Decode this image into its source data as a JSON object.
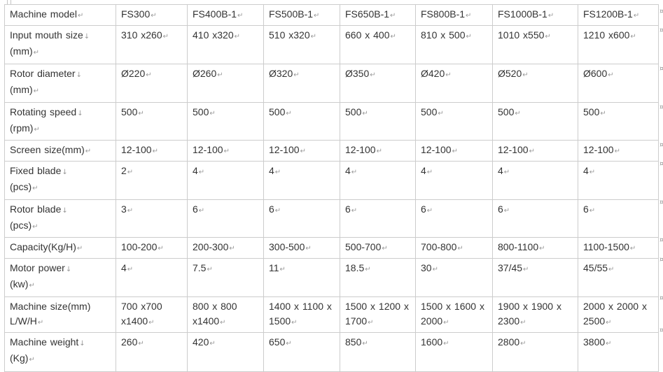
{
  "theme": {
    "page_background": "#ffffff",
    "border_color": "#cccccc",
    "text_color": "#333333",
    "mark_color": "#999999"
  },
  "marks": {
    "line_break": "↓",
    "paragraph": "↵",
    "row_end": "¤"
  },
  "table": {
    "rows": [
      {
        "id": "machine-model",
        "cells": [
          {
            "lines": [
              {
                "text": "Machine model",
                "mark": "↵"
              }
            ]
          },
          {
            "lines": [
              {
                "text": "FS300",
                "mark": "↵"
              }
            ]
          },
          {
            "lines": [
              {
                "text": "FS400B-1",
                "mark": "↵"
              }
            ]
          },
          {
            "lines": [
              {
                "text": "FS500B-1",
                "mark": "↵"
              }
            ]
          },
          {
            "lines": [
              {
                "text": "FS650B-1",
                "mark": "↵"
              }
            ]
          },
          {
            "lines": [
              {
                "text": "FS800B-1",
                "mark": "↵"
              }
            ]
          },
          {
            "lines": [
              {
                "text": "FS1000B-1",
                "mark": "↵"
              }
            ]
          },
          {
            "lines": [
              {
                "text": "FS1200B-1",
                "mark": "↵"
              }
            ]
          }
        ]
      },
      {
        "id": "input-mouth-size",
        "cells": [
          {
            "lines": [
              {
                "text": "Input mouth size",
                "mark": "↓"
              },
              {
                "text": "(mm)",
                "mark": "↵"
              }
            ]
          },
          {
            "lines": [
              {
                "text": "310 x260",
                "mark": "↵"
              }
            ]
          },
          {
            "lines": [
              {
                "text": "410 x320",
                "mark": "↵"
              }
            ]
          },
          {
            "lines": [
              {
                "text": "510 x320",
                "mark": "↵"
              }
            ]
          },
          {
            "lines": [
              {
                "text": "660 x 400",
                "mark": "↵"
              }
            ]
          },
          {
            "lines": [
              {
                "text": "810 x 500",
                "mark": "↵"
              }
            ]
          },
          {
            "lines": [
              {
                "text": "1010 x550",
                "mark": "↵"
              }
            ]
          },
          {
            "lines": [
              {
                "text": "1210 x600",
                "mark": "↵"
              }
            ]
          }
        ]
      },
      {
        "id": "rotor-diameter",
        "cells": [
          {
            "lines": [
              {
                "text": "Rotor diameter",
                "mark": "↓"
              },
              {
                "text": "(mm)",
                "mark": "↵"
              }
            ]
          },
          {
            "lines": [
              {
                "text": "Ø220",
                "mark": "↵"
              }
            ]
          },
          {
            "lines": [
              {
                "text": "Ø260",
                "mark": "↵"
              }
            ]
          },
          {
            "lines": [
              {
                "text": "Ø320",
                "mark": "↵"
              }
            ]
          },
          {
            "lines": [
              {
                "text": "Ø350",
                "mark": "↵"
              }
            ]
          },
          {
            "lines": [
              {
                "text": "Ø420",
                "mark": "↵"
              }
            ]
          },
          {
            "lines": [
              {
                "text": "Ø520",
                "mark": "↵"
              }
            ]
          },
          {
            "lines": [
              {
                "text": "Ø600",
                "mark": "↵"
              }
            ]
          }
        ]
      },
      {
        "id": "rotating-speed",
        "cells": [
          {
            "lines": [
              {
                "text": "Rotating speed",
                "mark": "↓"
              },
              {
                "text": "(rpm)",
                "mark": "↵"
              }
            ]
          },
          {
            "lines": [
              {
                "text": "500",
                "mark": "↵"
              }
            ]
          },
          {
            "lines": [
              {
                "text": "500",
                "mark": "↵"
              }
            ]
          },
          {
            "lines": [
              {
                "text": "500",
                "mark": "↵"
              }
            ]
          },
          {
            "lines": [
              {
                "text": "500",
                "mark": "↵"
              }
            ]
          },
          {
            "lines": [
              {
                "text": "500",
                "mark": "↵"
              }
            ]
          },
          {
            "lines": [
              {
                "text": "500",
                "mark": "↵"
              }
            ]
          },
          {
            "lines": [
              {
                "text": "500",
                "mark": "↵"
              }
            ]
          }
        ]
      },
      {
        "id": "screen-size",
        "cells": [
          {
            "lines": [
              {
                "text": "Screen size(mm)",
                "mark": "↵"
              }
            ]
          },
          {
            "lines": [
              {
                "text": "12-100",
                "mark": "↵"
              }
            ]
          },
          {
            "lines": [
              {
                "text": "12-100",
                "mark": "↵"
              }
            ]
          },
          {
            "lines": [
              {
                "text": "12-100",
                "mark": "↵"
              }
            ]
          },
          {
            "lines": [
              {
                "text": "12-100",
                "mark": "↵"
              }
            ]
          },
          {
            "lines": [
              {
                "text": "12-100",
                "mark": "↵"
              }
            ]
          },
          {
            "lines": [
              {
                "text": "12-100",
                "mark": "↵"
              }
            ]
          },
          {
            "lines": [
              {
                "text": "12-100",
                "mark": "↵"
              }
            ]
          }
        ]
      },
      {
        "id": "fixed-blade",
        "cells": [
          {
            "lines": [
              {
                "text": "Fixed blade",
                "mark": "↓"
              },
              {
                "text": "(pcs)",
                "mark": "↵"
              }
            ]
          },
          {
            "lines": [
              {
                "text": "2",
                "mark": "↵"
              }
            ]
          },
          {
            "lines": [
              {
                "text": "4",
                "mark": "↵"
              }
            ]
          },
          {
            "lines": [
              {
                "text": "4",
                "mark": "↵"
              }
            ]
          },
          {
            "lines": [
              {
                "text": "4",
                "mark": "↵"
              }
            ]
          },
          {
            "lines": [
              {
                "text": "4",
                "mark": "↵"
              }
            ]
          },
          {
            "lines": [
              {
                "text": "4",
                "mark": "↵"
              }
            ]
          },
          {
            "lines": [
              {
                "text": "4",
                "mark": "↵"
              }
            ]
          }
        ]
      },
      {
        "id": "rotor-blade",
        "cells": [
          {
            "lines": [
              {
                "text": "Rotor blade",
                "mark": "↓"
              },
              {
                "text": "(pcs)",
                "mark": "↵"
              }
            ]
          },
          {
            "lines": [
              {
                "text": "3",
                "mark": "↵"
              }
            ]
          },
          {
            "lines": [
              {
                "text": "6",
                "mark": "↵"
              }
            ]
          },
          {
            "lines": [
              {
                "text": "6",
                "mark": "↵"
              }
            ]
          },
          {
            "lines": [
              {
                "text": "6",
                "mark": "↵"
              }
            ]
          },
          {
            "lines": [
              {
                "text": "6",
                "mark": "↵"
              }
            ]
          },
          {
            "lines": [
              {
                "text": "6",
                "mark": "↵"
              }
            ]
          },
          {
            "lines": [
              {
                "text": "6",
                "mark": "↵"
              }
            ]
          }
        ]
      },
      {
        "id": "capacity",
        "cells": [
          {
            "lines": [
              {
                "text": "Capacity(Kg/H)",
                "mark": "↵"
              }
            ]
          },
          {
            "lines": [
              {
                "text": "100-200",
                "mark": "↵"
              }
            ]
          },
          {
            "lines": [
              {
                "text": "200-300",
                "mark": "↵"
              }
            ]
          },
          {
            "lines": [
              {
                "text": "300-500",
                "mark": "↵"
              }
            ]
          },
          {
            "lines": [
              {
                "text": "500-700",
                "mark": "↵"
              }
            ]
          },
          {
            "lines": [
              {
                "text": "700-800",
                "mark": "↵"
              }
            ]
          },
          {
            "lines": [
              {
                "text": "800-1100",
                "mark": "↵"
              }
            ]
          },
          {
            "lines": [
              {
                "text": "1100-1500",
                "mark": "↵"
              }
            ]
          }
        ]
      },
      {
        "id": "motor-power",
        "cells": [
          {
            "lines": [
              {
                "text": "Motor power",
                "mark": "↓"
              },
              {
                "text": "(kw)",
                "mark": "↵"
              }
            ]
          },
          {
            "lines": [
              {
                "text": "4",
                "mark": "↵"
              }
            ]
          },
          {
            "lines": [
              {
                "text": "7.5",
                "mark": "↵"
              }
            ]
          },
          {
            "lines": [
              {
                "text": "11",
                "mark": "↵"
              }
            ]
          },
          {
            "lines": [
              {
                "text": "18.5",
                "mark": "↵"
              }
            ]
          },
          {
            "lines": [
              {
                "text": "30",
                "mark": "↵"
              }
            ]
          },
          {
            "lines": [
              {
                "text": "37/45",
                "mark": "↵"
              }
            ]
          },
          {
            "lines": [
              {
                "text": "45/55",
                "mark": "↵"
              }
            ]
          }
        ]
      },
      {
        "id": "machine-size",
        "cells": [
          {
            "lines": [
              {
                "text": "Machine size(mm) L/W/H",
                "mark": "↵"
              }
            ]
          },
          {
            "lines": [
              {
                "text": "700 x700 x1400",
                "mark": "↵"
              }
            ]
          },
          {
            "lines": [
              {
                "text": "800 x 800 x1400",
                "mark": "↵"
              }
            ]
          },
          {
            "lines": [
              {
                "text": "1400 x 1100 x 1500",
                "mark": "↵"
              }
            ]
          },
          {
            "lines": [
              {
                "text": "1500 x 1200 x 1700",
                "mark": "↵"
              }
            ]
          },
          {
            "lines": [
              {
                "text": "1500 x 1600 x 2000",
                "mark": "↵"
              }
            ]
          },
          {
            "lines": [
              {
                "text": "1900 x 1900 x 2300",
                "mark": "↵"
              }
            ]
          },
          {
            "lines": [
              {
                "text": "2000 x 2000 x 2500",
                "mark": "↵"
              }
            ]
          }
        ]
      },
      {
        "id": "machine-weight",
        "cells": [
          {
            "lines": [
              {
                "text": "Machine weight",
                "mark": "↓"
              },
              {
                "text": "(Kg)",
                "mark": "↵"
              }
            ]
          },
          {
            "lines": [
              {
                "text": "260",
                "mark": "↵"
              }
            ]
          },
          {
            "lines": [
              {
                "text": "420",
                "mark": "↵"
              }
            ]
          },
          {
            "lines": [
              {
                "text": "650",
                "mark": "↵"
              }
            ]
          },
          {
            "lines": [
              {
                "text": "850",
                "mark": "↵"
              }
            ]
          },
          {
            "lines": [
              {
                "text": "1600",
                "mark": "↵"
              }
            ]
          },
          {
            "lines": [
              {
                "text": "2800",
                "mark": "↵"
              }
            ]
          },
          {
            "lines": [
              {
                "text": "3800",
                "mark": "↵"
              }
            ]
          }
        ]
      }
    ]
  }
}
